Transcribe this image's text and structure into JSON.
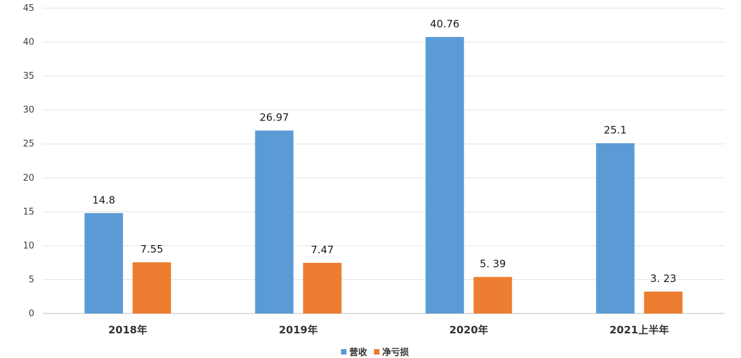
{
  "chart_data": {
    "type": "bar",
    "title": "",
    "xlabel": "",
    "ylabel": "",
    "categories": [
      "2018年",
      "2019年",
      "2020年",
      "2021上半年"
    ],
    "series": [
      {
        "name": "营收",
        "color": "#5b9bd5",
        "values": [
          14.8,
          26.97,
          40.76,
          25.1
        ],
        "labels": [
          "14.8",
          "26.97",
          "40.76",
          "25.1"
        ]
      },
      {
        "name": "净亏损",
        "color": "#ed7d31",
        "values": [
          7.55,
          7.47,
          5.39,
          3.23
        ],
        "labels": [
          "7.55",
          "7.47",
          "5. 39",
          "3. 23"
        ]
      }
    ],
    "ylim": [
      0,
      45
    ],
    "yticks": [
      "0",
      "5",
      "10",
      "15",
      "20",
      "25",
      "30",
      "35",
      "40",
      "45"
    ],
    "grid": true,
    "legend": "bottom-center"
  }
}
